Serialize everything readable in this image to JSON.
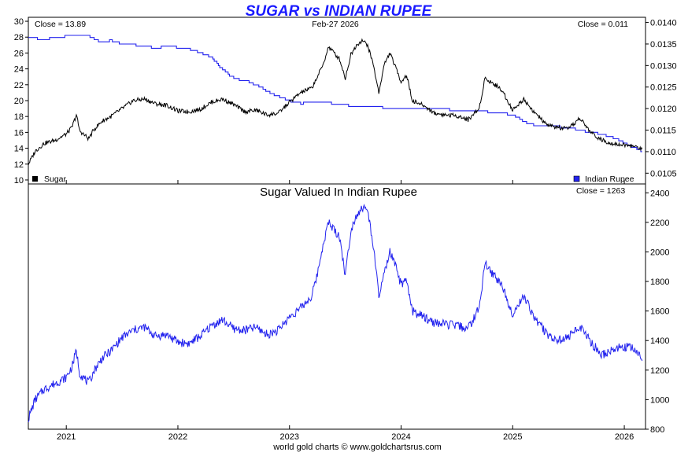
{
  "chart_data": [
    {
      "type": "line",
      "title": "SUGAR vs INDIAN RUPEE",
      "date_label": "Feb-27  2026",
      "close_left": "Close = 13.89",
      "close_right": "Close = 0.011",
      "title_color": "#1a1aff",
      "left_axis": {
        "ylim": [
          9.5,
          30.5
        ],
        "ticks": [
          "30",
          "28",
          "26",
          "24",
          "22",
          "20",
          "18",
          "16",
          "14",
          "12",
          "10"
        ]
      },
      "right_axis": {
        "ylim": [
          0.01025,
          0.01412
        ],
        "ticks": [
          "0.0140",
          "0.0135",
          "0.0130",
          "0.0125",
          "0.0120",
          "0.0115",
          "0.0110",
          "0.0105"
        ]
      },
      "x_ticks": [
        "2021",
        "2022",
        "2023",
        "2024",
        "2025",
        "2026"
      ],
      "xlim": [
        2020.66,
        2026.19
      ],
      "series": [
        {
          "name": "Sugar",
          "color": "#000000",
          "axis": "left",
          "x": [
            2020.66,
            2020.72,
            2020.8,
            2020.9,
            2021.0,
            2021.05,
            2021.09,
            2021.12,
            2021.2,
            2021.25,
            2021.32,
            2021.4,
            2021.5,
            2021.6,
            2021.7,
            2021.8,
            2021.9,
            2022.0,
            2022.1,
            2022.2,
            2022.3,
            2022.4,
            2022.5,
            2022.6,
            2022.7,
            2022.8,
            2022.9,
            2023.0,
            2023.1,
            2023.2,
            2023.25,
            2023.3,
            2023.35,
            2023.4,
            2023.45,
            2023.5,
            2023.55,
            2023.6,
            2023.65,
            2023.7,
            2023.75,
            2023.8,
            2023.85,
            2023.9,
            2023.95,
            2024.0,
            2024.05,
            2024.1,
            2024.2,
            2024.3,
            2024.4,
            2024.5,
            2024.6,
            2024.7,
            2024.75,
            2024.8,
            2024.9,
            2025.0,
            2025.1,
            2025.2,
            2025.3,
            2025.4,
            2025.5,
            2025.6,
            2025.7,
            2025.8,
            2025.9,
            2026.0,
            2026.1,
            2026.16
          ],
          "values": [
            12.0,
            13.6,
            14.6,
            15.0,
            15.8,
            16.6,
            18.2,
            16.2,
            15.2,
            16.4,
            17.4,
            18.0,
            19.0,
            20.0,
            20.2,
            19.6,
            19.4,
            18.7,
            18.6,
            18.9,
            19.8,
            20.2,
            19.5,
            18.6,
            18.8,
            18.2,
            18.4,
            19.8,
            21.0,
            21.6,
            23.0,
            24.5,
            26.8,
            26.0,
            25.2,
            22.8,
            25.8,
            27.0,
            27.6,
            27.0,
            24.6,
            21.0,
            24.6,
            26.0,
            24.2,
            22.4,
            23.2,
            20.0,
            19.4,
            18.4,
            18.2,
            18.1,
            17.6,
            19.0,
            22.8,
            22.4,
            21.4,
            18.8,
            20.2,
            18.4,
            17.0,
            16.6,
            16.4,
            17.8,
            16.0,
            15.0,
            14.6,
            14.4,
            14.2,
            13.89
          ]
        },
        {
          "name": "Indian Rupee",
          "color": "#2222ee",
          "axis": "right",
          "x": [
            2020.66,
            2020.8,
            2020.9,
            2021.0,
            2021.1,
            2021.2,
            2021.3,
            2021.4,
            2021.5,
            2021.6,
            2021.7,
            2021.8,
            2021.9,
            2022.0,
            2022.1,
            2022.2,
            2022.3,
            2022.4,
            2022.5,
            2022.6,
            2022.7,
            2022.8,
            2022.9,
            2023.0,
            2023.1,
            2023.2,
            2023.4,
            2023.6,
            2023.8,
            2024.0,
            2024.2,
            2024.4,
            2024.6,
            2024.8,
            2025.0,
            2025.1,
            2025.2,
            2025.3,
            2025.4,
            2025.5,
            2025.6,
            2025.7,
            2025.8,
            2025.9,
            2026.0,
            2026.1,
            2026.16
          ],
          "values": [
            0.01365,
            0.0136,
            0.01365,
            0.01368,
            0.01372,
            0.01368,
            0.01355,
            0.01358,
            0.0135,
            0.01348,
            0.01345,
            0.0134,
            0.01345,
            0.01342,
            0.01338,
            0.0133,
            0.01318,
            0.0129,
            0.0127,
            0.01265,
            0.01255,
            0.0124,
            0.01228,
            0.01218,
            0.01212,
            0.01215,
            0.01212,
            0.01205,
            0.01203,
            0.012,
            0.01201,
            0.01198,
            0.01195,
            0.01192,
            0.01186,
            0.0117,
            0.0116,
            0.01162,
            0.01158,
            0.01155,
            0.0115,
            0.01145,
            0.0114,
            0.01132,
            0.0112,
            0.01108,
            0.011
          ]
        }
      ],
      "legend": [
        {
          "label": "Sugar",
          "color": "#000000",
          "position": "bottom-left"
        },
        {
          "label": "Indian Rupee",
          "color": "#2222ee",
          "position": "bottom-right"
        }
      ]
    },
    {
      "type": "line",
      "title": "Sugar Valued In Indian Rupee",
      "close_right": "Close = 1263",
      "right_axis": {
        "ylim": [
          800,
          2460
        ],
        "ticks": [
          "2400",
          "2200",
          "2000",
          "1800",
          "1600",
          "1400",
          "1200",
          "1000",
          "800"
        ]
      },
      "x_ticks": [
        "2021",
        "2022",
        "2023",
        "2024",
        "2025",
        "2026"
      ],
      "xlim": [
        2020.66,
        2026.19
      ],
      "series": [
        {
          "color": "#2222ee",
          "x": [
            2020.66,
            2020.72,
            2020.8,
            2020.9,
            2021.0,
            2021.05,
            2021.09,
            2021.12,
            2021.2,
            2021.25,
            2021.32,
            2021.4,
            2021.5,
            2021.6,
            2021.7,
            2021.8,
            2021.9,
            2022.0,
            2022.1,
            2022.2,
            2022.3,
            2022.4,
            2022.5,
            2022.6,
            2022.7,
            2022.8,
            2022.9,
            2023.0,
            2023.1,
            2023.2,
            2023.25,
            2023.3,
            2023.35,
            2023.4,
            2023.45,
            2023.5,
            2023.55,
            2023.6,
            2023.65,
            2023.7,
            2023.75,
            2023.8,
            2023.85,
            2023.9,
            2023.95,
            2024.0,
            2024.05,
            2024.1,
            2024.2,
            2024.3,
            2024.4,
            2024.5,
            2024.6,
            2024.7,
            2024.75,
            2024.8,
            2024.9,
            2025.0,
            2025.1,
            2025.2,
            2025.3,
            2025.4,
            2025.5,
            2025.6,
            2025.7,
            2025.8,
            2025.9,
            2026.0,
            2026.1,
            2026.16
          ],
          "values": [
            870,
            1000,
            1070,
            1110,
            1150,
            1220,
            1330,
            1180,
            1110,
            1200,
            1280,
            1330,
            1420,
            1470,
            1490,
            1430,
            1440,
            1390,
            1380,
            1430,
            1500,
            1540,
            1480,
            1470,
            1490,
            1440,
            1470,
            1560,
            1620,
            1700,
            1850,
            2050,
            2200,
            2150,
            2100,
            1840,
            2150,
            2250,
            2300,
            2280,
            2050,
            1700,
            1850,
            2000,
            1900,
            1780,
            1800,
            1600,
            1560,
            1520,
            1510,
            1500,
            1480,
            1620,
            1920,
            1870,
            1780,
            1580,
            1700,
            1550,
            1450,
            1400,
            1420,
            1500,
            1390,
            1300,
            1340,
            1360,
            1340,
            1263
          ]
        }
      ]
    }
  ],
  "footer": "world gold charts © www.goldchartsrus.com"
}
